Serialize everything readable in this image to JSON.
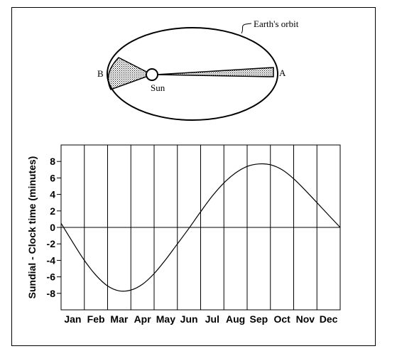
{
  "diagram": {
    "orbit_label": "Earth's orbit",
    "sun_label": "Sun",
    "point_a_label": "A",
    "point_b_label": "B"
  },
  "chart_data": {
    "type": "line",
    "title": "",
    "xlabel": "",
    "ylabel": "Sundial - Clock time  (minutes)",
    "categories": [
      "Jan",
      "Feb",
      "Mar",
      "Apr",
      "May",
      "Jun",
      "Jul",
      "Aug",
      "Sep",
      "Oct",
      "Nov",
      "Dec"
    ],
    "y_ticks": [
      8,
      6,
      4,
      2,
      0,
      -2,
      -4,
      -6,
      -8
    ],
    "ylim": [
      -10,
      10
    ],
    "grid": {
      "vertical": true,
      "horizontal": false,
      "zero_line": true
    },
    "series": [
      {
        "x": [
          0,
          0.5,
          1,
          1.5,
          2,
          2.5,
          3,
          3.5,
          4,
          4.5,
          5,
          5.5,
          6,
          6.5,
          7,
          7.5,
          8,
          8.5,
          9,
          9.5,
          10,
          10.5,
          11,
          11.5,
          12
        ],
        "values": [
          0.5,
          -1.8,
          -4.0,
          -5.8,
          -7.1,
          -7.7,
          -7.6,
          -6.9,
          -5.6,
          -3.9,
          -2.0,
          -0.1,
          1.9,
          3.8,
          5.4,
          6.6,
          7.4,
          7.7,
          7.6,
          7.0,
          5.9,
          4.5,
          3.0,
          1.5,
          0.0
        ]
      }
    ],
    "line_color": "#000000"
  }
}
